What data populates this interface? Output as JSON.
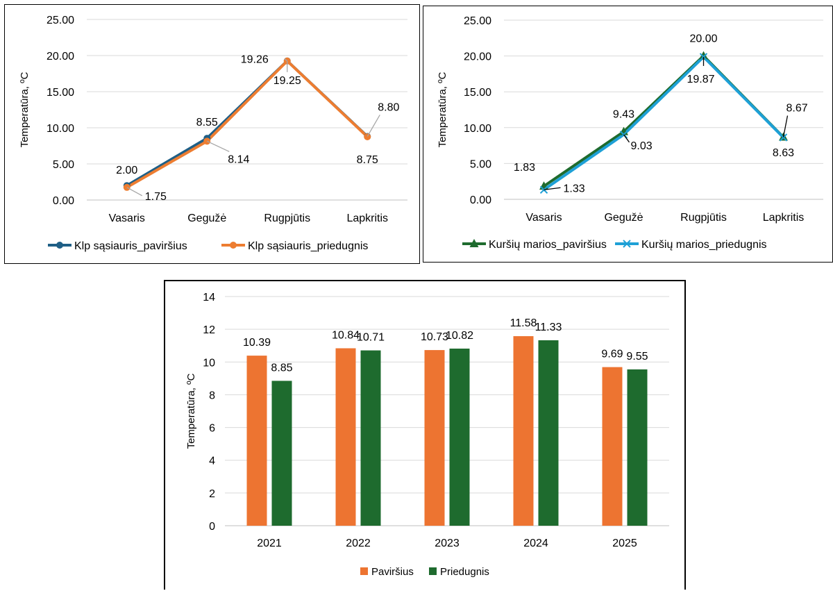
{
  "chart_data": [
    {
      "type": "line",
      "title": "",
      "ylabel": "Temperatūra, ºC",
      "xlabel": "",
      "categories": [
        "Vasaris",
        "Gegužė",
        "Rugpjūtis",
        "Lapkritis"
      ],
      "ylim": [
        0,
        25
      ],
      "yticks": [
        "0.00",
        "5.00",
        "10.00",
        "15.00",
        "20.00",
        "25.00"
      ],
      "grid": true,
      "legend_position": "bottom",
      "series": [
        {
          "name": "Klp sąsiauris_paviršius",
          "values": [
            2.0,
            8.55,
            19.26,
            8.8
          ],
          "labels": [
            "2.00",
            "8.55",
            "19.26",
            "8.80"
          ],
          "color": "#1f5f86",
          "marker": "circle"
        },
        {
          "name": "Klp sąsiauris_priedugnis",
          "values": [
            1.75,
            8.14,
            19.25,
            8.75
          ],
          "labels": [
            "1.75",
            "8.14",
            "19.25",
            "8.75"
          ],
          "color": "#ed7d31",
          "marker": "circle"
        }
      ]
    },
    {
      "type": "line",
      "title": "",
      "ylabel": "Temperatūra, ºC",
      "xlabel": "",
      "categories": [
        "Vasaris",
        "Gegužė",
        "Rugpjūtis",
        "Lapkritis"
      ],
      "ylim": [
        0,
        25
      ],
      "yticks": [
        "0.00",
        "5.00",
        "10.00",
        "15.00",
        "20.00",
        "25.00"
      ],
      "grid": true,
      "legend_position": "bottom",
      "series": [
        {
          "name": "Kuršių marios_paviršius",
          "values": [
            1.83,
            9.43,
            20.0,
            8.67
          ],
          "labels": [
            "1.83",
            "9.43",
            "20.00",
            "8.67"
          ],
          "color": "#1e6b2e",
          "marker": "triangle"
        },
        {
          "name": "Kuršių marios_priedugnis",
          "values": [
            1.33,
            9.03,
            19.87,
            8.63
          ],
          "labels": [
            "1.33",
            "9.03",
            "19.87",
            "8.63"
          ],
          "color": "#1ea0d6",
          "marker": "x"
        }
      ]
    },
    {
      "type": "bar",
      "title": "",
      "ylabel": "Temperatūra, ºC",
      "xlabel": "",
      "categories": [
        "2021",
        "2022",
        "2023",
        "2024",
        "2025"
      ],
      "ylim": [
        0,
        14
      ],
      "yticks": [
        "0",
        "2",
        "4",
        "6",
        "8",
        "10",
        "12",
        "14"
      ],
      "grid": true,
      "legend_position": "bottom",
      "series": [
        {
          "name": "Paviršius",
          "values": [
            10.39,
            10.84,
            10.73,
            11.58,
            9.69
          ],
          "labels": [
            "10.39",
            "10.84",
            "10.73",
            "11.58",
            "9.69"
          ],
          "color": "#ed7431"
        },
        {
          "name": "Priedugnis",
          "values": [
            8.85,
            10.71,
            10.82,
            11.33,
            9.55
          ],
          "labels": [
            "8.85",
            "10.71",
            "10.82",
            "11.33",
            "9.55"
          ],
          "color": "#1e6b2e"
        }
      ]
    }
  ]
}
